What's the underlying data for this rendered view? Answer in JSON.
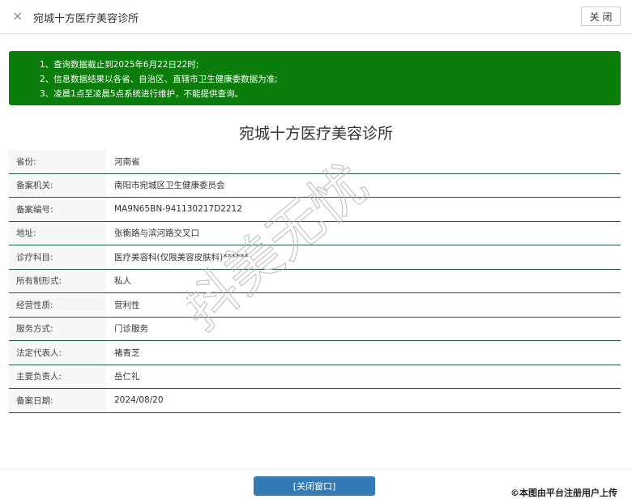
{
  "header": {
    "title": "宛城十方医疗美容诊所",
    "close_icon": "×",
    "close_label": "关 闭"
  },
  "notice": {
    "lines": [
      "1、查询数据截止到2025年6月22日22时;",
      "2、信息数据结果以各省、自治区、直辖市卫生健康委数据为准;",
      "3、凌晨1点至凌晨5点系统进行维护，不能提供查询。"
    ],
    "color": "#0a7d0a"
  },
  "page_title": "宛城十方医疗美容诊所",
  "rows": [
    {
      "k": "省份:",
      "v": "河南省"
    },
    {
      "k": "备案机关:",
      "v": "南阳市宛城区卫生健康委员会"
    },
    {
      "k": "备案编号:",
      "v": "MA9N65BN-941130217D2212"
    },
    {
      "k": "地址:",
      "v": "张衡路与滨河路交叉口"
    },
    {
      "k": "诊疗科目:",
      "v": "医疗美容科(仅限美容皮肤科)******"
    },
    {
      "k": "所有制形式:",
      "v": "私人"
    },
    {
      "k": "经营性质:",
      "v": "营利性"
    },
    {
      "k": "服务方式:",
      "v": "门诊服务"
    },
    {
      "k": "法定代表人:",
      "v": "褚青芝"
    },
    {
      "k": "主要负责人:",
      "v": "岳仁礼"
    },
    {
      "k": "备案日期:",
      "v": "2024/08/20"
    }
  ],
  "watermark": "抖美无忧",
  "footer": {
    "close_window": "[关闭窗口]",
    "credit": "©本图由平台注册用户上传"
  }
}
